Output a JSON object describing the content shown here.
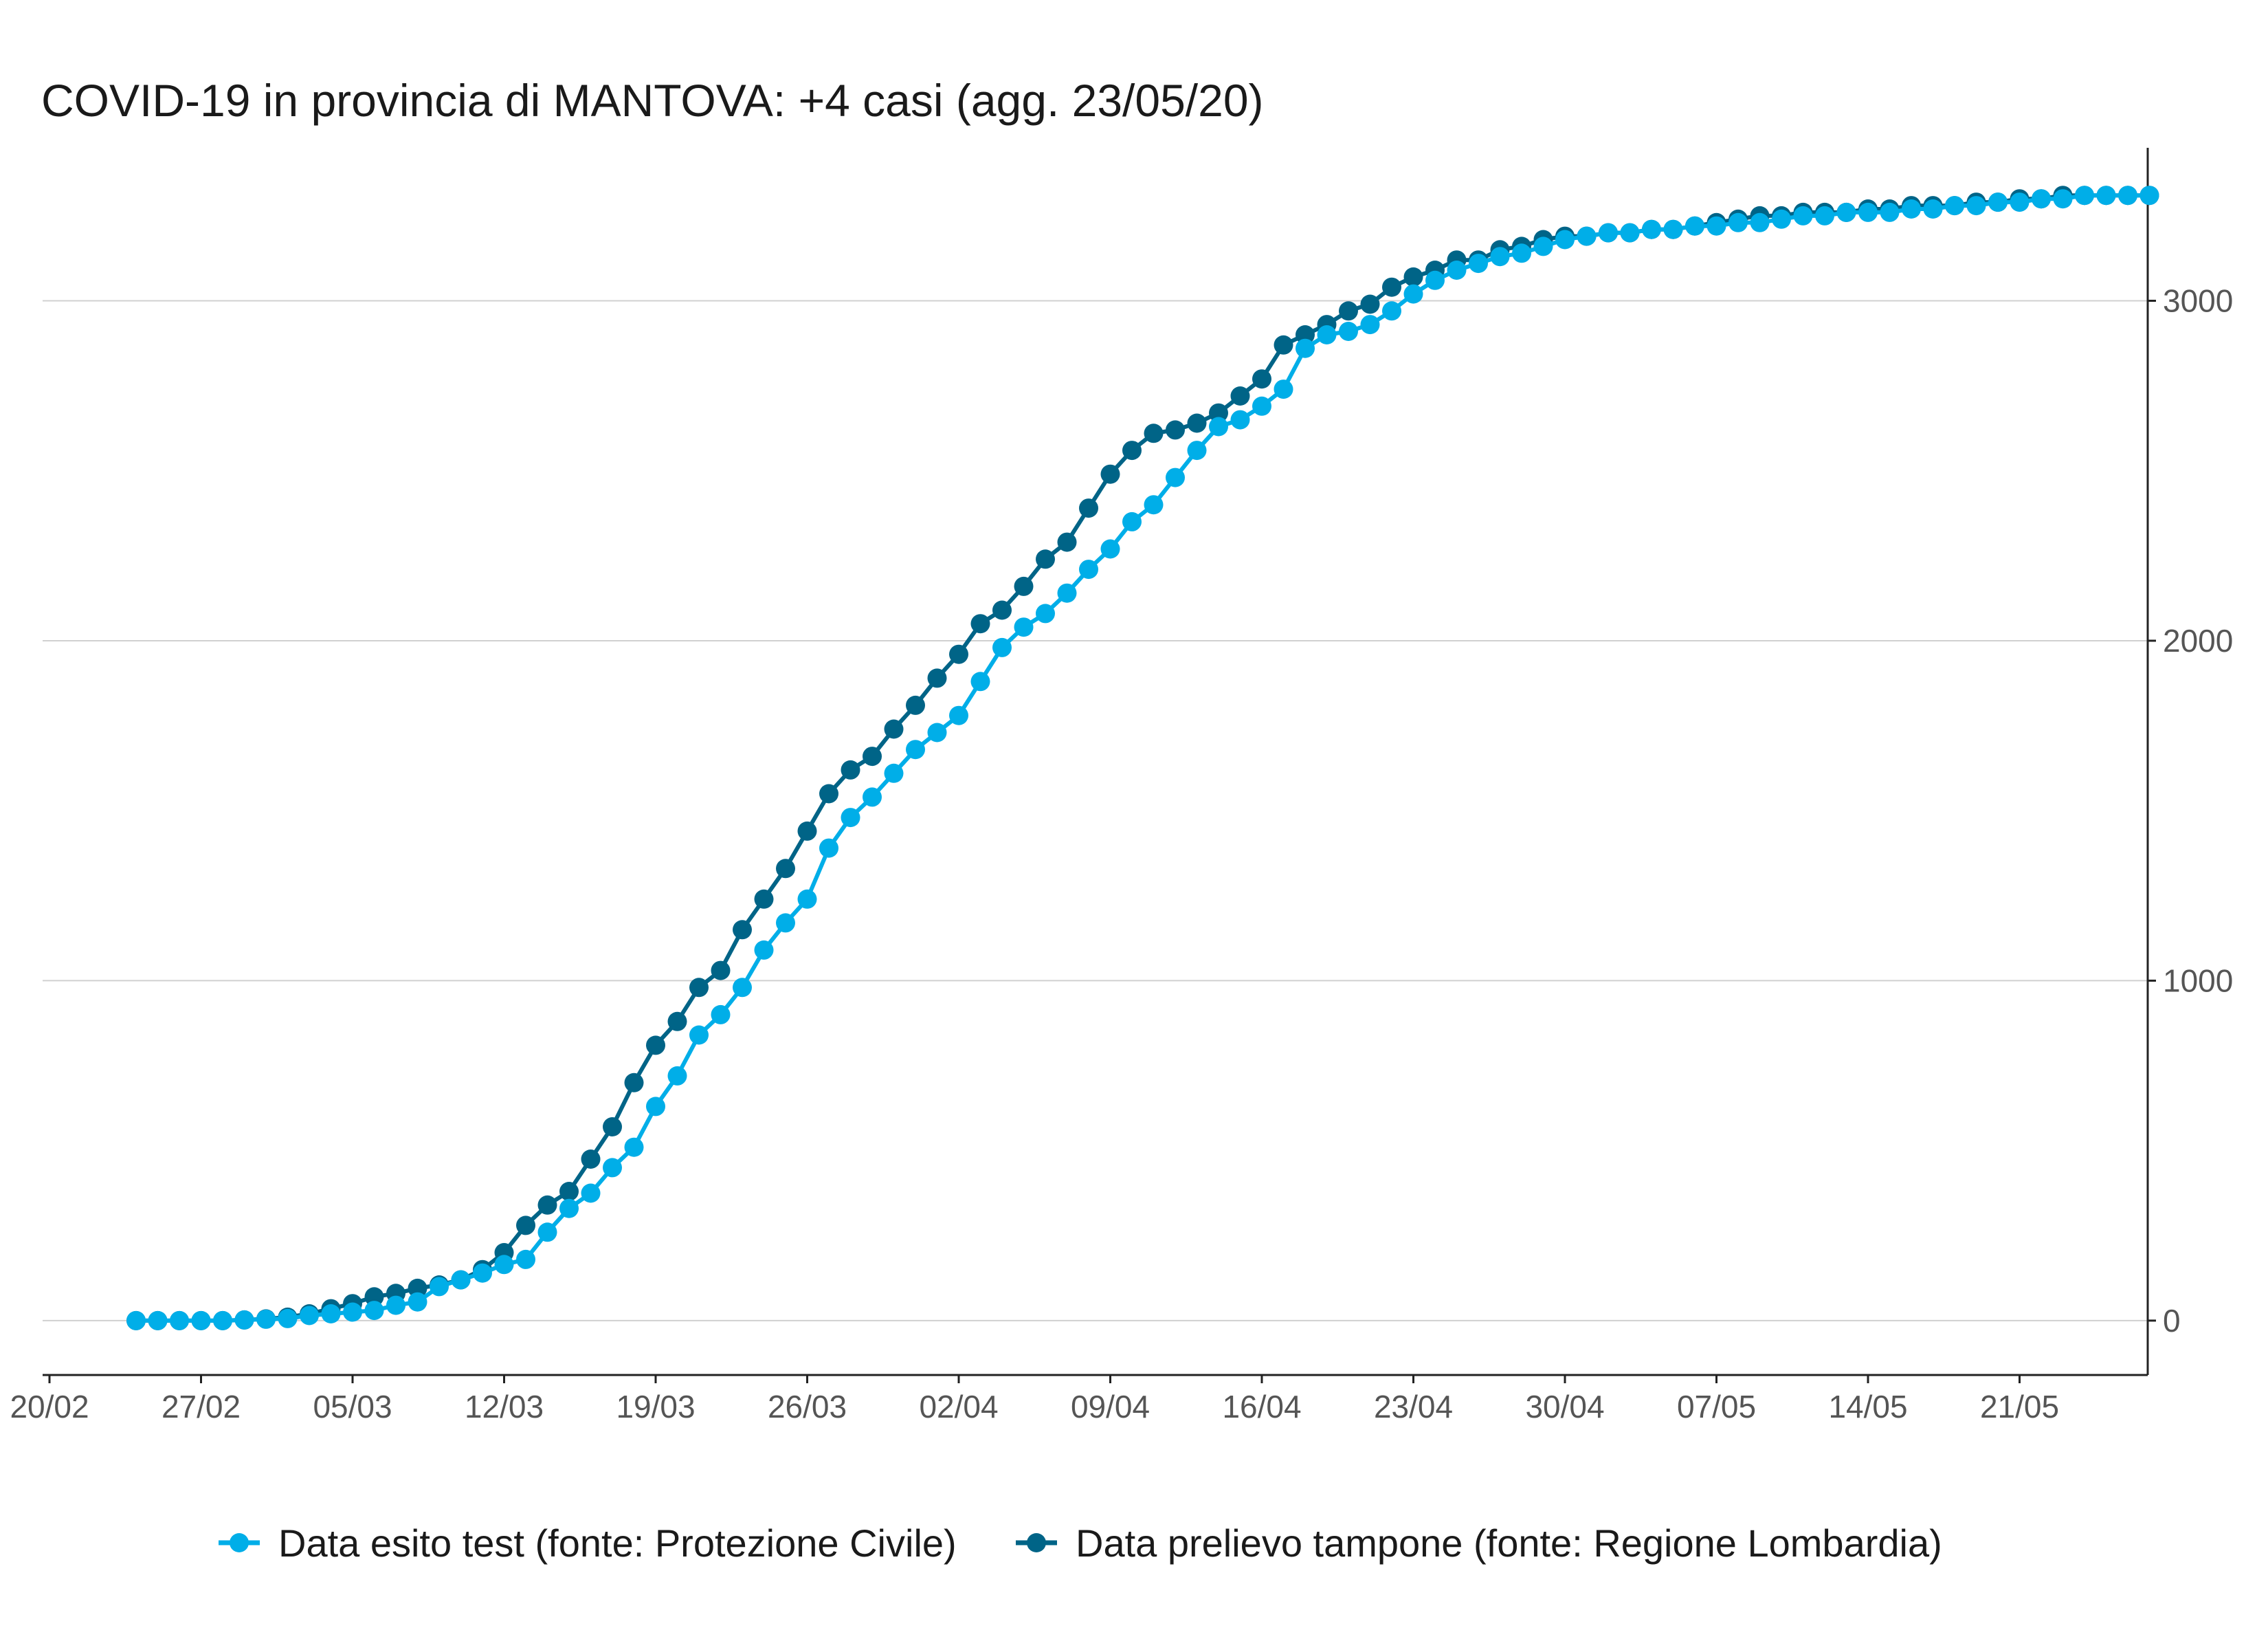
{
  "chart_data": {
    "type": "line",
    "title": "COVID-19 in provincia di MANTOVA: +4 casi (agg. 23/05/20)",
    "xlabel": "",
    "ylabel": "",
    "x_start_date": "2020-02-20",
    "x_ticks": [
      "20/02",
      "27/02",
      "05/03",
      "12/03",
      "19/03",
      "26/03",
      "02/04",
      "09/04",
      "16/04",
      "23/04",
      "30/04",
      "07/05",
      "14/05",
      "21/05"
    ],
    "y_ticks": [
      0,
      1000,
      2000,
      3000
    ],
    "xlim_days": [
      0,
      97
    ],
    "ylim": [
      -160,
      3450
    ],
    "grid": "horizontal",
    "y_axis_position": "right",
    "legend_position": "bottom",
    "series": [
      {
        "name": "Data esito test (fonte: Protezione Civile)",
        "color": "#00aee8",
        "start_day": 4,
        "values": [
          0,
          0,
          0,
          0,
          0,
          2,
          4,
          6,
          15,
          20,
          25,
          30,
          45,
          55,
          100,
          120,
          140,
          165,
          180,
          260,
          330,
          375,
          450,
          510,
          630,
          720,
          840,
          900,
          980,
          1090,
          1170,
          1240,
          1390,
          1480,
          1540,
          1610,
          1680,
          1730,
          1780,
          1880,
          1980,
          2040,
          2080,
          2140,
          2210,
          2270,
          2350,
          2400,
          2480,
          2560,
          2630,
          2650,
          2690,
          2740,
          2860,
          2900,
          2910,
          2930,
          2970,
          3020,
          3060,
          3090,
          3110,
          3130,
          3140,
          3160,
          3180,
          3190,
          3200,
          3200,
          3210,
          3210,
          3220,
          3220,
          3230,
          3230,
          3240,
          3250,
          3250,
          3260,
          3260,
          3260,
          3270,
          3270,
          3280,
          3280,
          3290,
          3290,
          3300,
          3300,
          3310,
          3310,
          3310,
          3310
        ]
      },
      {
        "name": "Data prelievo tampone (fonte: Regione Lombardia)",
        "color": "#006487",
        "start_day": 4,
        "values": [
          0,
          0,
          0,
          0,
          0,
          2,
          5,
          10,
          20,
          35,
          50,
          70,
          80,
          95,
          105,
          120,
          150,
          200,
          280,
          340,
          380,
          475,
          570,
          700,
          810,
          880,
          980,
          1030,
          1150,
          1240,
          1330,
          1440,
          1550,
          1620,
          1660,
          1740,
          1810,
          1890,
          1960,
          2050,
          2090,
          2160,
          2240,
          2290,
          2390,
          2490,
          2560,
          2610,
          2620,
          2640,
          2670,
          2720,
          2770,
          2870,
          2900,
          2930,
          2970,
          2990,
          3040,
          3070,
          3090,
          3120,
          3120,
          3150,
          3160,
          3180,
          3190,
          3190,
          3200,
          3200,
          3210,
          3210,
          3220,
          3230,
          3240,
          3250,
          3250,
          3260,
          3260,
          3260,
          3270,
          3270,
          3280,
          3280,
          3280,
          3290,
          3290,
          3300,
          3300,
          3310,
          3310,
          3310,
          3310,
          3310
        ]
      }
    ]
  }
}
